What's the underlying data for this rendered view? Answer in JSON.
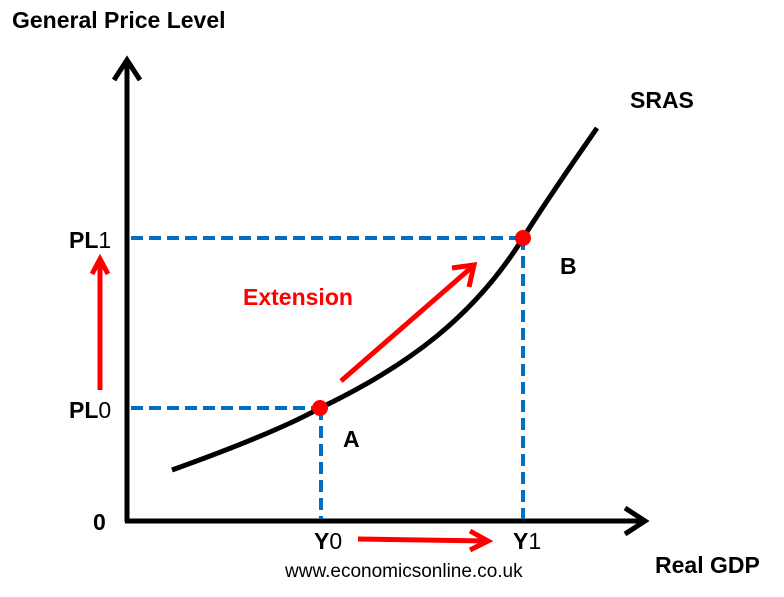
{
  "title_y_axis": "General Price Level",
  "title_x_axis": "Real GDP",
  "curve_label": "SRAS",
  "origin_label": "0",
  "price_levels": [
    {
      "label": "PL",
      "sub": "0"
    },
    {
      "label": "PL",
      "sub": "1"
    }
  ],
  "outputs": [
    {
      "label": "Y",
      "sub": "0"
    },
    {
      "label": "Y",
      "sub": "1"
    }
  ],
  "points": [
    "A",
    "B"
  ],
  "movement_label": "Extension",
  "source": "www.economicsonline.co.uk",
  "colors": {
    "axis": "#000000",
    "curve": "#000000",
    "guides": "#0070c0",
    "arrows": "#ff0000",
    "points": "#ff0000"
  }
}
